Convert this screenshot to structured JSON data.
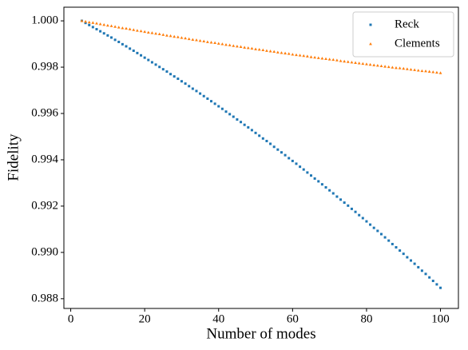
{
  "chart_data": {
    "type": "scatter",
    "xlabel": "Number of modes",
    "ylabel": "Fidelity",
    "x": [
      3,
      4,
      5,
      6,
      7,
      8,
      9,
      10,
      11,
      12,
      13,
      14,
      15,
      16,
      17,
      18,
      19,
      20,
      21,
      22,
      23,
      24,
      25,
      26,
      27,
      28,
      29,
      30,
      31,
      32,
      33,
      34,
      35,
      36,
      37,
      38,
      39,
      40,
      41,
      42,
      43,
      44,
      45,
      46,
      47,
      48,
      49,
      50,
      51,
      52,
      53,
      54,
      55,
      56,
      57,
      58,
      59,
      60,
      61,
      62,
      63,
      64,
      65,
      66,
      67,
      68,
      69,
      70,
      71,
      72,
      73,
      74,
      75,
      76,
      77,
      78,
      79,
      80,
      81,
      82,
      83,
      84,
      85,
      86,
      87,
      88,
      89,
      90,
      91,
      92,
      93,
      94,
      95,
      96,
      97,
      98,
      99,
      100
    ],
    "series": [
      {
        "name": "Reck",
        "color": "#1f77b4",
        "marker": "square",
        "values": [
          1.0,
          0.99991,
          0.99982,
          0.99973,
          0.99964,
          0.99955,
          0.99946,
          0.99937,
          0.99928,
          0.99918,
          0.99909,
          0.99899,
          0.9989,
          0.9988,
          0.99871,
          0.99861,
          0.99851,
          0.99841,
          0.99831,
          0.99821,
          0.99811,
          0.99801,
          0.99791,
          0.99781,
          0.9977,
          0.9976,
          0.9975,
          0.99739,
          0.99729,
          0.99718,
          0.99707,
          0.99697,
          0.99686,
          0.99675,
          0.99664,
          0.99653,
          0.99642,
          0.99631,
          0.9962,
          0.99608,
          0.99597,
          0.99586,
          0.99574,
          0.99563,
          0.99551,
          0.9954,
          0.99528,
          0.99516,
          0.99504,
          0.99492,
          0.99481,
          0.99469,
          0.99456,
          0.99444,
          0.99432,
          0.9942,
          0.99407,
          0.99395,
          0.99383,
          0.9937,
          0.99358,
          0.99345,
          0.99332,
          0.99319,
          0.99307,
          0.99294,
          0.99281,
          0.99268,
          0.99255,
          0.99241,
          0.99228,
          0.99215,
          0.99202,
          0.99188,
          0.99175,
          0.99161,
          0.99148,
          0.99134,
          0.9912,
          0.99106,
          0.99093,
          0.99079,
          0.99065,
          0.99051,
          0.99036,
          0.99022,
          0.99008,
          0.98994,
          0.98979,
          0.98965,
          0.98951,
          0.98936,
          0.98921,
          0.98907,
          0.98892,
          0.98877,
          0.98862,
          0.98847
        ]
      },
      {
        "name": "Clements",
        "color": "#ff7f0e",
        "marker": "triangle",
        "values": [
          1.0,
          0.99997,
          0.99994,
          0.99992,
          0.99989,
          0.99986,
          0.99983,
          0.9998,
          0.99978,
          0.99975,
          0.99972,
          0.99969,
          0.99967,
          0.99964,
          0.99961,
          0.99958,
          0.99956,
          0.99953,
          0.9995,
          0.99948,
          0.99945,
          0.99943,
          0.9994,
          0.99937,
          0.99935,
          0.99932,
          0.9993,
          0.99927,
          0.99925,
          0.99922,
          0.99919,
          0.99917,
          0.99914,
          0.99912,
          0.99909,
          0.99907,
          0.99905,
          0.99902,
          0.999,
          0.99897,
          0.99895,
          0.99892,
          0.9989,
          0.99888,
          0.99885,
          0.99883,
          0.99881,
          0.99878,
          0.99876,
          0.99874,
          0.99871,
          0.99869,
          0.99867,
          0.99864,
          0.99862,
          0.9986,
          0.99858,
          0.99855,
          0.99853,
          0.99851,
          0.99849,
          0.99847,
          0.99844,
          0.99842,
          0.9984,
          0.99838,
          0.99836,
          0.99834,
          0.99832,
          0.9983,
          0.99827,
          0.99825,
          0.99823,
          0.99821,
          0.99819,
          0.99817,
          0.99815,
          0.99813,
          0.99811,
          0.99809,
          0.99807,
          0.99805,
          0.99803,
          0.99801,
          0.99799,
          0.99797,
          0.99796,
          0.99794,
          0.99792,
          0.9979,
          0.99788,
          0.99786,
          0.99784,
          0.99783,
          0.99781,
          0.99779,
          0.99777,
          0.99775
        ]
      }
    ],
    "xlim": [
      -1.85,
      104.85
    ],
    "xticks": [
      0,
      20,
      40,
      60,
      80,
      100
    ],
    "ylim": [
      0.98758,
      1.00059
    ],
    "yticks": [
      {
        "value": 0.988,
        "label": "0.988"
      },
      {
        "value": 0.99,
        "label": "0.990"
      },
      0.992,
      0.994,
      0.996,
      0.998,
      {
        "value": 1,
        "label": "1.000"
      }
    ],
    "legend": "upper right",
    "grid": false
  }
}
